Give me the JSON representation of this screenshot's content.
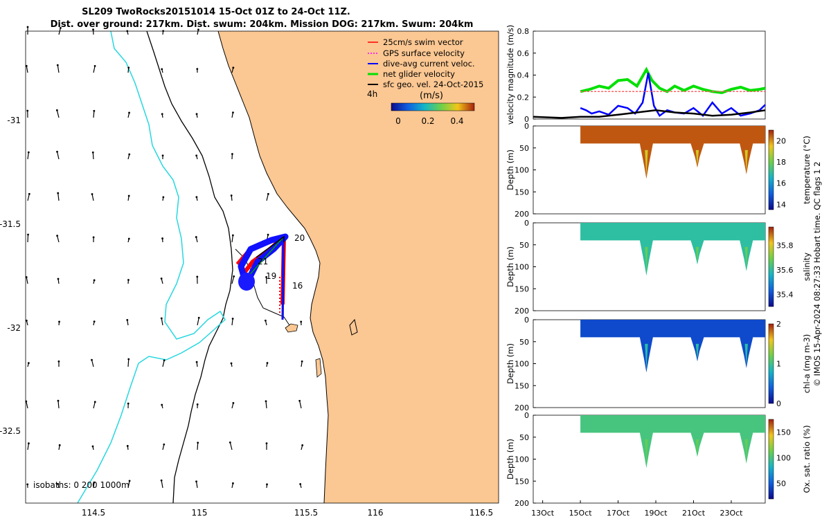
{
  "header": {
    "title_line1": "SL209 TwoRocks20151014 15-Oct 01Z to 24-Oct 11Z.",
    "title_line2": "Dist. over ground: 217km. Dist. swum: 204km. Mission DOG: 217km. Swum: 204km"
  },
  "map": {
    "lon_ticks": [
      "114.5",
      "115",
      "115.5",
      "116",
      "116.5"
    ],
    "lat_ticks": [
      "-31",
      "-31.5",
      "-32",
      "-32.5"
    ],
    "isobaths_label": "isobaths: 0   200  1000m",
    "legend": [
      {
        "label": "25cm/s swim vector",
        "color": "#ff0000"
      },
      {
        "label": "GPS surface velocity",
        "color": "#ff00ff"
      },
      {
        "label": "dive-avg current veloc.",
        "color": "#0000ff"
      },
      {
        "label": "net glider velocity",
        "color": "#00e000"
      },
      {
        "label": "sfc geo. vel. 24-Oct-2015",
        "color": "#000000"
      }
    ],
    "scale_label": "4h",
    "colorbar_title": "(m/s)",
    "colorbar_ticks": [
      "0",
      "0.2",
      "0.4"
    ],
    "day_labels": [
      "20",
      "21",
      "19",
      "16"
    ],
    "colors": {
      "land": "#fbc792",
      "isobath_200": "#000000",
      "isobath_1000": "#26d7e0"
    }
  },
  "chart_data": [
    {
      "type": "line",
      "title": "",
      "ylabel": "velocity magnitude (m/s)",
      "ylim": [
        0,
        0.8
      ],
      "yticks": [
        "0",
        "0.2",
        "0.4",
        "0.6",
        "0.8"
      ],
      "x_unit": "day of Oct 2015",
      "xlim": [
        12.5,
        24.8
      ],
      "series": [
        {
          "name": "net glider velocity",
          "color": "#00e000",
          "x": [
            15.0,
            15.5,
            16.0,
            16.5,
            17.0,
            17.5,
            18.0,
            18.5,
            18.8,
            19.2,
            19.6,
            20.0,
            20.5,
            21.0,
            21.5,
            22.0,
            22.5,
            23.0,
            23.5,
            24.0,
            24.5,
            24.8
          ],
          "values": [
            0.25,
            0.27,
            0.3,
            0.28,
            0.35,
            0.36,
            0.3,
            0.45,
            0.35,
            0.28,
            0.25,
            0.3,
            0.26,
            0.3,
            0.27,
            0.25,
            0.24,
            0.27,
            0.29,
            0.26,
            0.27,
            0.28
          ]
        },
        {
          "name": "dive-avg current veloc.",
          "color": "#0000ff",
          "x": [
            15.0,
            15.3,
            15.6,
            16.0,
            16.5,
            17.0,
            17.5,
            17.9,
            18.3,
            18.6,
            18.9,
            19.2,
            19.6,
            20.0,
            20.5,
            21.0,
            21.5,
            22.0,
            22.5,
            23.0,
            23.5,
            24.0,
            24.5,
            24.8
          ],
          "values": [
            0.1,
            0.08,
            0.05,
            0.07,
            0.04,
            0.12,
            0.1,
            0.05,
            0.15,
            0.42,
            0.12,
            0.03,
            0.08,
            0.06,
            0.05,
            0.1,
            0.03,
            0.15,
            0.05,
            0.1,
            0.03,
            0.05,
            0.08,
            0.13
          ]
        },
        {
          "name": "sfc geo. vel.",
          "color": "#000000",
          "x": [
            12.5,
            14.0,
            15.0,
            16.0,
            17.0,
            18.0,
            19.0,
            20.0,
            21.0,
            22.0,
            23.0,
            24.0,
            24.8
          ],
          "values": [
            0.02,
            0.01,
            0.02,
            0.02,
            0.04,
            0.06,
            0.08,
            0.06,
            0.05,
            0.03,
            0.04,
            0.06,
            0.08
          ]
        },
        {
          "name": "25cm/s swim vector",
          "color": "#ff6060",
          "x": [
            15.0,
            24.8
          ],
          "values": [
            0.25,
            0.25
          ]
        }
      ],
      "xticks": [
        "13Oct",
        "15Oct",
        "17Oct",
        "19Oct",
        "21Oct",
        "23Oct"
      ]
    },
    {
      "type": "heatmap",
      "variable": "temperature",
      "ylabel": "Depth (m)",
      "ylim": [
        200,
        0
      ],
      "yticks": [
        "0",
        "50",
        "100",
        "150",
        "200"
      ],
      "colorbar_label": "temperature (°C)",
      "colorbar_ticks": [
        "14",
        "16",
        "18",
        "20"
      ],
      "clim": [
        13.5,
        21
      ],
      "colormap": "parula",
      "typical_value": 20.5,
      "dive_depths": [
        [
          18.5,
          120
        ],
        [
          21.2,
          95
        ],
        [
          23.8,
          110
        ]
      ]
    },
    {
      "type": "heatmap",
      "variable": "salinity",
      "ylabel": "Depth (m)",
      "ylim": [
        200,
        0
      ],
      "yticks": [
        "0",
        "50",
        "100",
        "150",
        "200"
      ],
      "colorbar_label": "salinity",
      "colorbar_ticks": [
        "35.4",
        "35.6",
        "35.8"
      ],
      "clim": [
        35.3,
        35.95
      ],
      "colormap": "parula",
      "typical_value": 35.6,
      "dive_depths": [
        [
          18.5,
          120
        ],
        [
          21.2,
          95
        ],
        [
          23.8,
          110
        ]
      ]
    },
    {
      "type": "heatmap",
      "variable": "chl-a",
      "ylabel": "Depth (m)",
      "ylim": [
        200,
        0
      ],
      "yticks": [
        "0",
        "50",
        "100",
        "150",
        "200"
      ],
      "colorbar_label": "chl-a (mg m-3)",
      "colorbar_ticks": [
        "0",
        "1",
        "2"
      ],
      "clim": [
        0,
        2
      ],
      "colormap": "parula",
      "typical_value": 0.3,
      "dive_depths": [
        [
          18.5,
          120
        ],
        [
          21.2,
          95
        ],
        [
          23.8,
          110
        ]
      ]
    },
    {
      "type": "heatmap",
      "variable": "oxygen saturation",
      "ylabel": "Depth (m)",
      "ylim": [
        200,
        0
      ],
      "yticks": [
        "0",
        "50",
        "100",
        "150",
        "200"
      ],
      "colorbar_label": "Ox. sat. ratio (%)",
      "colorbar_ticks": [
        "50",
        "100",
        "150"
      ],
      "clim": [
        20,
        175
      ],
      "colormap": "parula",
      "typical_value": 100,
      "dive_depths": [
        [
          18.5,
          120
        ],
        [
          21.2,
          95
        ],
        [
          23.8,
          110
        ]
      ]
    }
  ],
  "side_note": "© IMOS 15-Apr-2024 08:27:33 Hobart time. QC flags 1  2"
}
